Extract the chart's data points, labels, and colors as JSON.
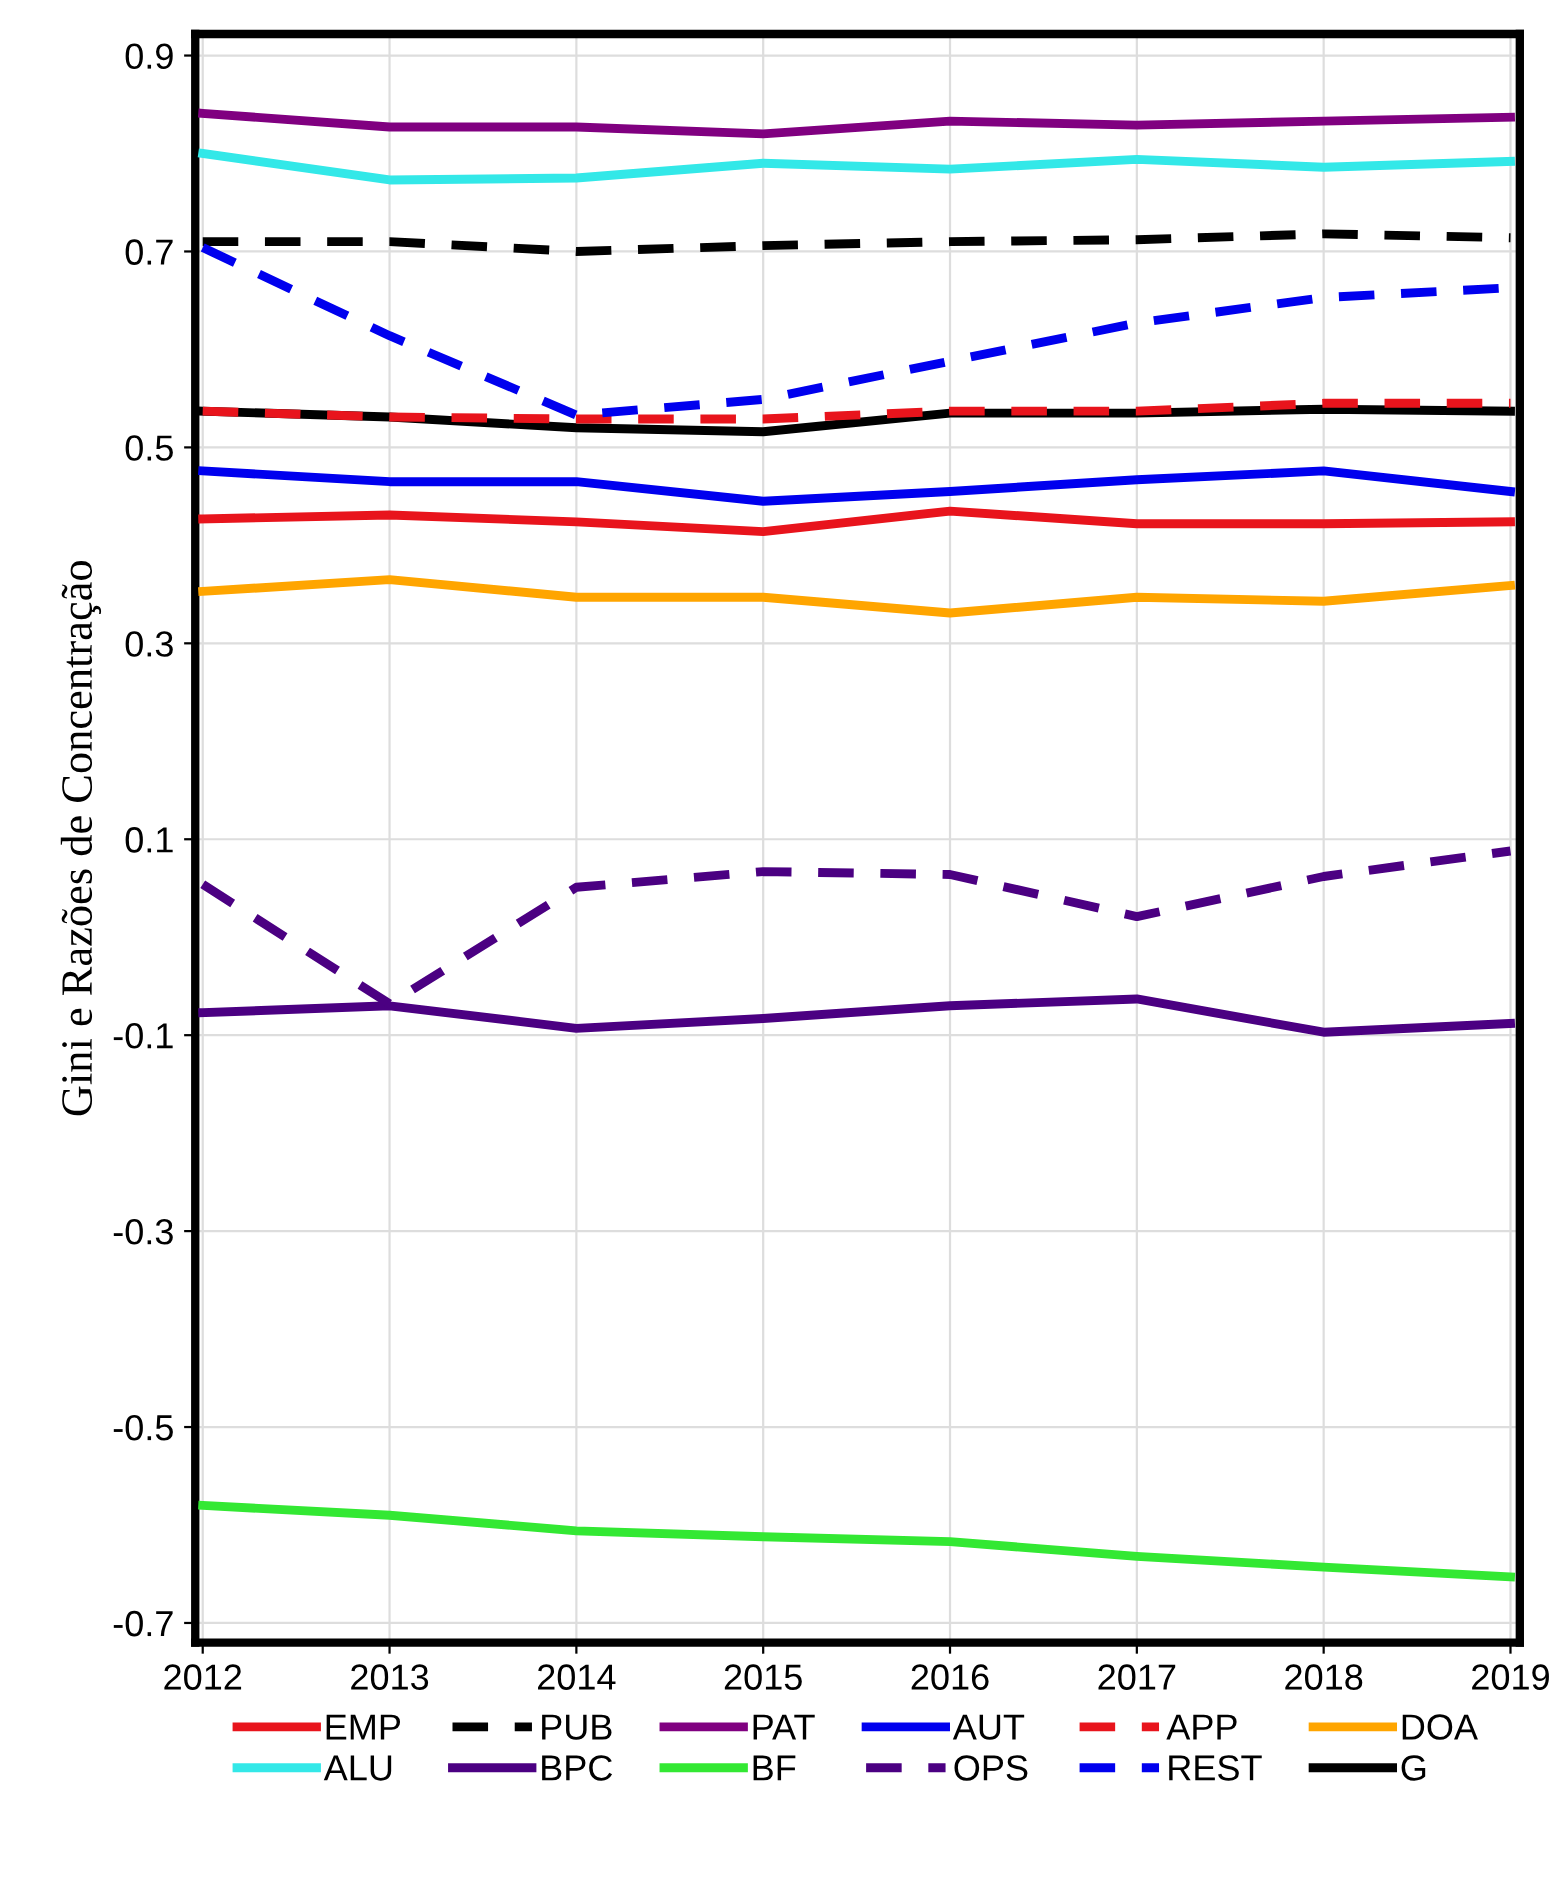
{
  "chart_data": {
    "type": "line",
    "ylabel": "Gini e Razões de Concentração",
    "x": [
      2012,
      2013,
      2014,
      2015,
      2016,
      2017,
      2018,
      2019
    ],
    "xlim": [
      2011.96,
      2019.05
    ],
    "xticks": [
      2012,
      2013,
      2014,
      2015,
      2016,
      2017,
      2018,
      2019
    ],
    "ylim": [
      -0.72,
      0.922
    ],
    "yticks": [
      0.9,
      0.7,
      0.5,
      0.3,
      0.1,
      -0.1,
      -0.3,
      -0.5,
      -0.7
    ],
    "grid": true,
    "legend": "bottom",
    "marker": "none",
    "series": [
      {
        "name": "EMP",
        "color": "#e8141c",
        "line_style": "solid",
        "values": [
          0.427,
          0.431,
          0.424,
          0.414,
          0.435,
          0.422,
          0.422,
          0.424
        ]
      },
      {
        "name": "PUB",
        "color": "#000000",
        "line_style": "dashed",
        "values": [
          0.71,
          0.71,
          0.7,
          0.706,
          0.71,
          0.712,
          0.718,
          0.714
        ]
      },
      {
        "name": "PAT",
        "color": "#800080",
        "line_style": "solid",
        "values": [
          0.841,
          0.827,
          0.827,
          0.82,
          0.833,
          0.829,
          0.833,
          0.837
        ]
      },
      {
        "name": "AUT",
        "color": "#0000ee",
        "line_style": "solid",
        "values": [
          0.476,
          0.465,
          0.465,
          0.445,
          0.455,
          0.467,
          0.476,
          0.455
        ]
      },
      {
        "name": "APP",
        "color": "#e8141c",
        "line_style": "dashed",
        "values": [
          0.537,
          0.531,
          0.529,
          0.529,
          0.537,
          0.537,
          0.545,
          0.545
        ]
      },
      {
        "name": "DOA",
        "color": "#ffa500",
        "line_style": "solid",
        "values": [
          0.353,
          0.365,
          0.347,
          0.347,
          0.331,
          0.347,
          0.343,
          0.359
        ]
      },
      {
        "name": "ALU",
        "color": "#33e8e8",
        "line_style": "solid",
        "values": [
          0.8,
          0.773,
          0.775,
          0.79,
          0.784,
          0.794,
          0.786,
          0.792
        ]
      },
      {
        "name": "BPC",
        "color": "#4b0082",
        "line_style": "solid",
        "values": [
          -0.077,
          -0.07,
          -0.093,
          -0.083,
          -0.07,
          -0.063,
          -0.097,
          -0.088
        ]
      },
      {
        "name": "BF",
        "color": "#33e833",
        "line_style": "solid",
        "values": [
          -0.58,
          -0.59,
          -0.606,
          -0.612,
          -0.617,
          -0.632,
          -0.643,
          -0.653
        ]
      },
      {
        "name": "OPS",
        "color": "#4b0082",
        "line_style": "dashed",
        "values": [
          0.054,
          -0.068,
          0.051,
          0.067,
          0.064,
          0.021,
          0.062,
          0.088
        ]
      },
      {
        "name": "REST",
        "color": "#0000ee",
        "line_style": "dashed",
        "values": [
          0.704,
          0.614,
          0.533,
          0.549,
          0.588,
          0.627,
          0.653,
          0.663
        ]
      },
      {
        "name": "G",
        "color": "#000000",
        "line_style": "solid",
        "values": [
          0.537,
          0.531,
          0.52,
          0.516,
          0.535,
          0.535,
          0.539,
          0.537
        ]
      }
    ]
  }
}
